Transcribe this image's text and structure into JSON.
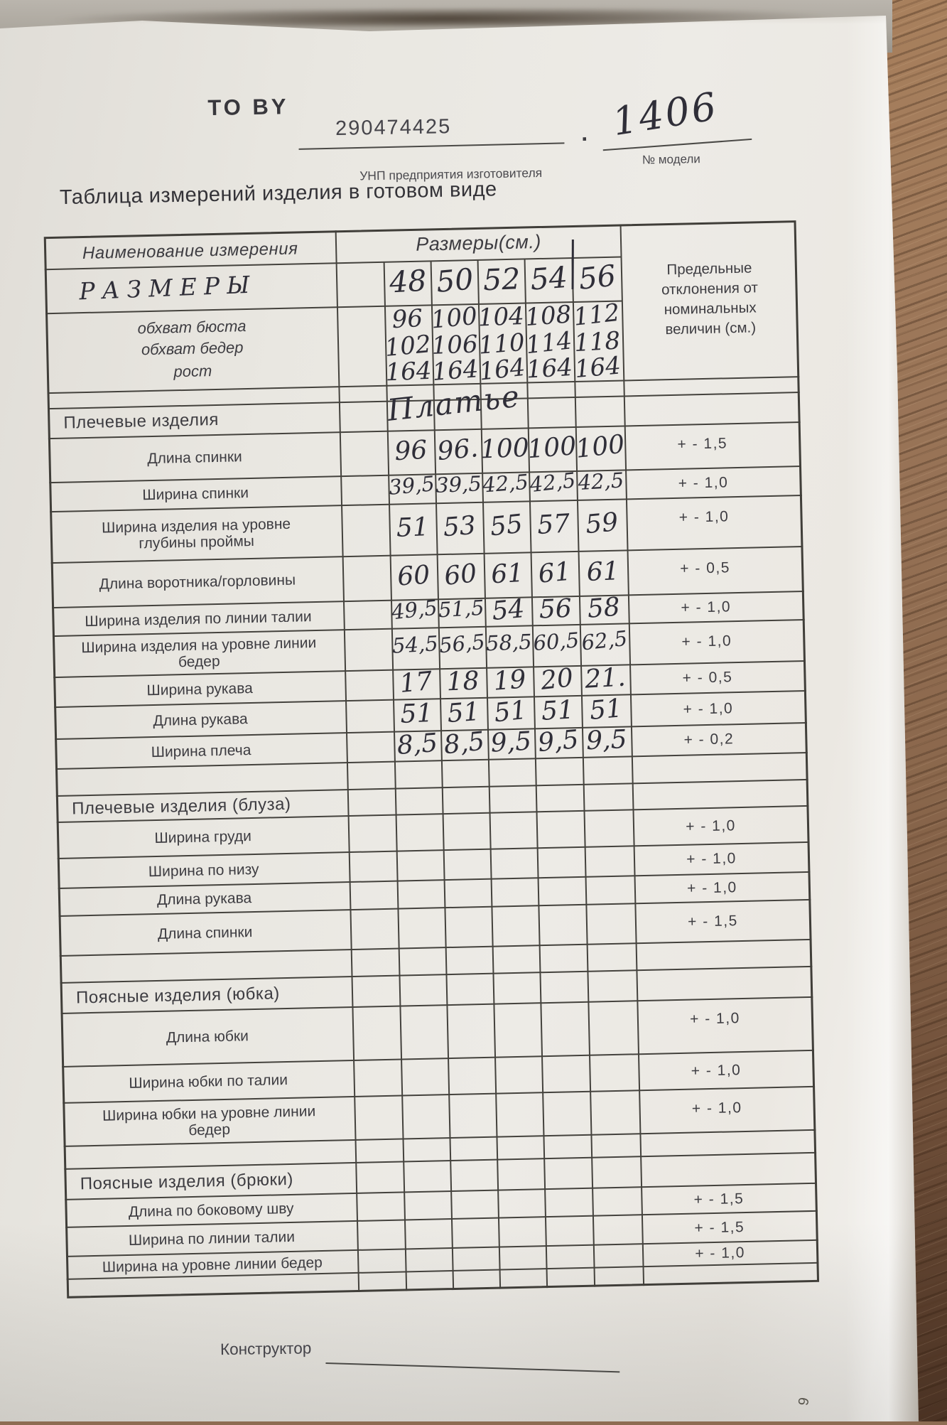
{
  "header": {
    "to_by_label": "ТО BY",
    "unp_value": "290474425",
    "unp_caption": "УНП предприятия изготовителя",
    "dot": ".",
    "model_value": "1406",
    "model_caption": "№ модели"
  },
  "title": "Таблица измерений изделия в готовом виде",
  "table": {
    "name_header": "Наименование измерения",
    "sizes_header": "Размеры(см.)",
    "tolerance_header": "Предельные отклонения от номинальных величин (см.)",
    "sizes_row_label": "РАЗМЕРЫ",
    "sizes": [
      "48",
      "50",
      "52",
      "54",
      "56"
    ],
    "base_rows": [
      {
        "label": "обхват бюста",
        "values": [
          "96",
          "100",
          "104",
          "108",
          "112"
        ]
      },
      {
        "label": "обхват бедер",
        "values": [
          "102",
          "106",
          "110",
          "114",
          "118"
        ]
      },
      {
        "label": "рост",
        "values": [
          "164",
          "164",
          "164",
          "164",
          "164"
        ]
      }
    ],
    "sections": [
      {
        "title": "Плечевые изделия",
        "note": "Платье",
        "rows": [
          {
            "label": "Длина спинки",
            "values": [
              "96",
              "96.",
              "100",
              "100",
              "100"
            ],
            "tolerance": "+ - 1,5"
          },
          {
            "label": "Ширина спинки",
            "values": [
              "39,5",
              "39,5",
              "42,5",
              "42,5",
              "42,5"
            ],
            "tolerance": "+ - 1,0"
          },
          {
            "label": "Ширина изделия на уровне глубины проймы",
            "values": [
              "51",
              "53",
              "55",
              "57",
              "59"
            ],
            "tolerance": "+ - 1,0"
          },
          {
            "label": "Длина воротника/горловины",
            "values": [
              "60",
              "60",
              "61",
              "61",
              "61"
            ],
            "tolerance": "+ - 0,5"
          },
          {
            "label": "Ширина изделия по линии талии",
            "values": [
              "49,5",
              "51,5",
              "54",
              "56",
              "58"
            ],
            "tolerance": "+ - 1,0"
          },
          {
            "label": "Ширина изделия на уровне линии бедер",
            "values": [
              "54,5",
              "56,5",
              "58,5",
              "60,5",
              "62,5"
            ],
            "tolerance": "+ - 1,0"
          },
          {
            "label": "Ширина рукава",
            "values": [
              "17",
              "18",
              "19",
              "20",
              "21."
            ],
            "tolerance": "+ - 0,5"
          },
          {
            "label": "Длина рукава",
            "values": [
              "51",
              "51",
              "51",
              "51",
              "51"
            ],
            "tolerance": "+ - 1,0"
          },
          {
            "label": "Ширина плеча",
            "values": [
              "8,5",
              "8,5",
              "9,5",
              "9,5",
              "9,5"
            ],
            "tolerance": "+ - 0,2"
          }
        ]
      },
      {
        "title": "Плечевые изделия (блуза)",
        "note": "",
        "rows": [
          {
            "label": "Ширина груди",
            "values": [],
            "tolerance": "+ - 1,0"
          },
          {
            "label": "Ширина по низу",
            "values": [],
            "tolerance": "+ - 1,0"
          },
          {
            "label": "Длина рукава",
            "values": [],
            "tolerance": "+ - 1,0"
          },
          {
            "label": "Длина спинки",
            "values": [],
            "tolerance": "+ - 1,5"
          }
        ]
      },
      {
        "title": "Поясные изделия (юбка)",
        "note": "",
        "rows": [
          {
            "label": "Длина юбки",
            "values": [],
            "tolerance": "+ - 1,0"
          },
          {
            "label": "Ширина юбки по талии",
            "values": [],
            "tolerance": "+ - 1,0"
          },
          {
            "label": "Ширина юбки на уровне линии бедер",
            "values": [],
            "tolerance": "+ - 1,0"
          }
        ]
      },
      {
        "title": "Поясные изделия (брюки)",
        "note": "",
        "rows": [
          {
            "label": "Длина по боковому шву",
            "values": [],
            "tolerance": "+ - 1,5"
          },
          {
            "label": "Ширина по линии талии",
            "values": [],
            "tolerance": "+ - 1,5"
          },
          {
            "label": "Ширина на уровне линии бедер",
            "values": [],
            "tolerance": "+ - 1,0"
          }
        ]
      }
    ]
  },
  "footer": {
    "designer_label": "Конструктор",
    "page_number": "6"
  }
}
